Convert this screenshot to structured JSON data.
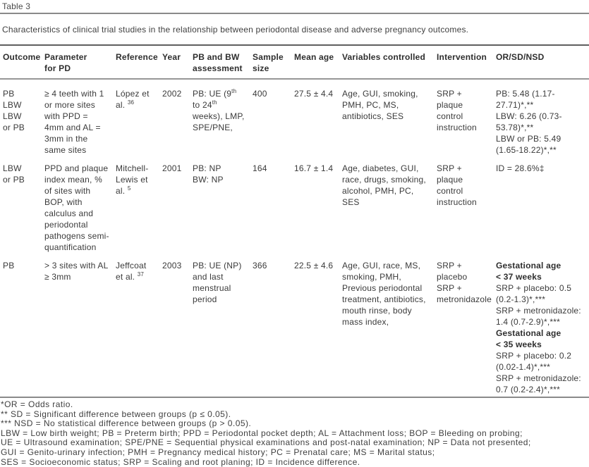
{
  "page_label": "Table 3",
  "caption": "Characteristics of clinical trial studies in the relationship between periodontal disease and adverse pregnancy outcomes.",
  "colors": {
    "ink": "#3a3a3a",
    "rule": "#8a8a8a"
  },
  "table": {
    "headers": [
      "Outcome",
      "Parameter\nfor PD",
      "Reference",
      "Year",
      "PB and BW\nassessment",
      "Sample\nsize",
      "Mean age",
      "Variables controlled",
      "Intervention",
      "OR/SD/NSD"
    ],
    "rows": [
      {
        "outcome": [
          {
            "t": "PB\nLBW\nLBW\nor PB"
          }
        ],
        "parameter": [
          {
            "t": "≥ 4 teeth with 1 or more sites with PPD = 4mm and AL = 3mm in the same sites"
          }
        ],
        "reference": [
          {
            "t": "López et al. "
          },
          {
            "t": "36",
            "m": "sup"
          }
        ],
        "year": [
          {
            "t": "2002"
          }
        ],
        "assessment": [
          {
            "t": "PB: UE (9"
          },
          {
            "t": "th",
            "m": "sup"
          },
          {
            "t": " to 24"
          },
          {
            "t": "th",
            "m": "sup"
          },
          {
            "t": " weeks), LMP, SPE/PNE,"
          }
        ],
        "sample": [
          {
            "t": "400"
          }
        ],
        "age": [
          {
            "t": "27.5 ± 4.4"
          }
        ],
        "variables": [
          {
            "t": "Age, GUI, smoking, PMH, PC, MS, antibiotics, SES"
          }
        ],
        "intervention": [
          {
            "t": "SRP + plaque control instruction"
          }
        ],
        "or_sd_nsd": [
          {
            "t": "PB: 5.48 (1.17-27.71)*,**\nLBW: 6.26 (0.73-53.78)*,**\nLBW or PB: 5.49 (1.65-18.22)*,**"
          }
        ]
      },
      {
        "outcome": [
          {
            "t": "LBW\nor PB"
          }
        ],
        "parameter": [
          {
            "t": "PPD and plaque index mean, % of sites with BOP, with calculus and periodontal pathogens semi-quantification"
          }
        ],
        "reference": [
          {
            "t": "Mitchell-Lewis et al. "
          },
          {
            "t": "5",
            "m": "sup"
          }
        ],
        "year": [
          {
            "t": "2001"
          }
        ],
        "assessment": [
          {
            "t": "PB: NP\nBW: NP"
          }
        ],
        "sample": [
          {
            "t": "164"
          }
        ],
        "age": [
          {
            "t": "16.7 ± 1.4"
          }
        ],
        "variables": [
          {
            "t": "Age, diabetes, GUI, race, drugs, smoking, alcohol, PMH, PC, SES"
          }
        ],
        "intervention": [
          {
            "t": "SRP + plaque control instruction"
          }
        ],
        "or_sd_nsd": [
          {
            "t": "ID = 28.6%‡"
          }
        ]
      },
      {
        "outcome": [
          {
            "t": "PB"
          }
        ],
        "parameter": [
          {
            "t": "> 3 sites with AL ≥ 3mm"
          }
        ],
        "reference": [
          {
            "t": "Jeffcoat et al. "
          },
          {
            "t": "37",
            "m": "sup"
          }
        ],
        "year": [
          {
            "t": "2003"
          }
        ],
        "assessment": [
          {
            "t": "PB: UE (NP) and last menstrual period"
          }
        ],
        "sample": [
          {
            "t": "366"
          }
        ],
        "age": [
          {
            "t": "22.5 ± 4.6"
          }
        ],
        "variables": [
          {
            "t": "Age, GUI, race, MS, smoking, PMH, Previous periodontal treatment, antibiotics, mouth rinse, body mass index,"
          }
        ],
        "intervention": [
          {
            "t": "SRP + placebo\nSRP +\nmetronidazole"
          }
        ],
        "or_sd_nsd": [
          {
            "t": "Gestational age\n< 37 weeks",
            "m": "b"
          },
          {
            "t": "\nSRP + placebo: 0.5 (0.2-1.3)*,***\nSRP + metronidazole: 1.4 (0.7-2.9)*,***\n"
          },
          {
            "t": "Gestational age\n< 35 weeks",
            "m": "b"
          },
          {
            "t": "\nSRP + placebo: 0.2 (0.02-1.4)*,***\nSRP + metronidazole: 0.7 (0.2-2.4)*,***"
          }
        ]
      }
    ]
  },
  "footnotes": [
    "*OR = Odds ratio.",
    "** SD = Significant difference between groups (p ≤ 0.05).",
    "*** NSD = No statistical difference between groups (p > 0.05).",
    "LBW = Low birth weight; PB = Preterm birth; PPD = Periodontal pocket depth; AL = Attachment loss; BOP = Bleeding on probing;",
    "UE = Ultrasound examination; SPE/PNE = Sequential physical examinations and post-natal examination; NP = Data not presented;",
    "GUI = Genito-urinary infection; PMH = Pregnancy medical history; PC = Prenatal care; MS = Marital status;",
    "SES = Socioeconomic status; SRP = Scaling and root planing; ID = Incidence difference."
  ]
}
